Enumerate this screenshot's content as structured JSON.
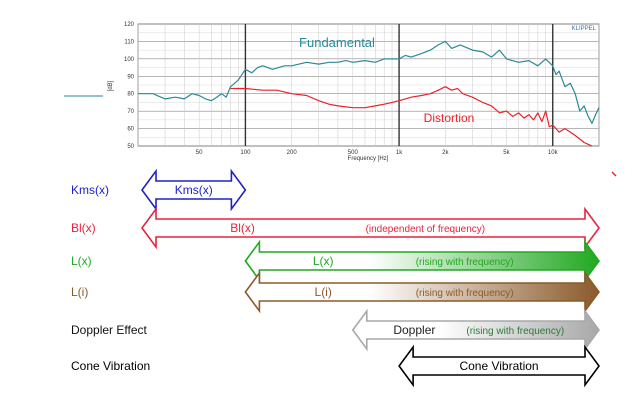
{
  "chart_data": {
    "type": "line",
    "x_scale": "log",
    "xlim": [
      20,
      20000
    ],
    "ylim": [
      50,
      120
    ],
    "grid": true,
    "xlabel": "Frequency [Hz]",
    "ylabel": "[dB]",
    "brand": "KLIPPEL",
    "x_ticks": [
      {
        "v": 50,
        "label": "50"
      },
      {
        "v": 100,
        "label": "100"
      },
      {
        "v": 200,
        "label": "200"
      },
      {
        "v": 500,
        "label": "500"
      },
      {
        "v": 1000,
        "label": "1k"
      },
      {
        "v": 2000,
        "label": "2k"
      },
      {
        "v": 5000,
        "label": "5k"
      },
      {
        "v": 10000,
        "label": "10k"
      }
    ],
    "y_ticks": [
      {
        "v": 50,
        "label": "50"
      },
      {
        "v": 60,
        "label": "60"
      },
      {
        "v": 70,
        "label": "70"
      },
      {
        "v": 80,
        "label": "80"
      },
      {
        "v": 90,
        "label": "90"
      },
      {
        "v": 100,
        "label": "100"
      },
      {
        "v": 110,
        "label": "110"
      },
      {
        "v": 120,
        "label": "120"
      }
    ],
    "series": [
      {
        "name": "Fundamental",
        "color": "#2a8a96",
        "points": [
          [
            20,
            80
          ],
          [
            25,
            80
          ],
          [
            30,
            77
          ],
          [
            35,
            78
          ],
          [
            40,
            77
          ],
          [
            45,
            80
          ],
          [
            50,
            79
          ],
          [
            55,
            77
          ],
          [
            60,
            76
          ],
          [
            65,
            78
          ],
          [
            70,
            80
          ],
          [
            75,
            78
          ],
          [
            80,
            84
          ],
          [
            85,
            86
          ],
          [
            90,
            88
          ],
          [
            100,
            94
          ],
          [
            110,
            92
          ],
          [
            120,
            95
          ],
          [
            130,
            96
          ],
          [
            150,
            94
          ],
          [
            180,
            96
          ],
          [
            200,
            96
          ],
          [
            250,
            98
          ],
          [
            300,
            97
          ],
          [
            350,
            98
          ],
          [
            400,
            98
          ],
          [
            450,
            99
          ],
          [
            500,
            98
          ],
          [
            600,
            99
          ],
          [
            700,
            98
          ],
          [
            800,
            100
          ],
          [
            900,
            100
          ],
          [
            1000,
            100
          ],
          [
            1100,
            102
          ],
          [
            1200,
            101
          ],
          [
            1400,
            103
          ],
          [
            1600,
            105
          ],
          [
            1800,
            108
          ],
          [
            2000,
            110
          ],
          [
            2200,
            106
          ],
          [
            2500,
            108
          ],
          [
            3000,
            105
          ],
          [
            3500,
            104
          ],
          [
            4000,
            101
          ],
          [
            4500,
            105
          ],
          [
            5000,
            100
          ],
          [
            6000,
            98
          ],
          [
            7000,
            99
          ],
          [
            8000,
            96
          ],
          [
            9000,
            100
          ],
          [
            10000,
            96
          ],
          [
            10500,
            91
          ],
          [
            11000,
            93
          ],
          [
            12000,
            84
          ],
          [
            13000,
            86
          ],
          [
            14000,
            80
          ],
          [
            15000,
            70
          ],
          [
            16000,
            73
          ],
          [
            17000,
            67
          ],
          [
            18000,
            63
          ],
          [
            19000,
            68
          ],
          [
            20000,
            72
          ]
        ]
      },
      {
        "name": "Distortion",
        "color": "#e8232a",
        "points": [
          [
            80,
            83
          ],
          [
            100,
            83
          ],
          [
            130,
            82
          ],
          [
            160,
            82
          ],
          [
            200,
            80
          ],
          [
            250,
            79
          ],
          [
            300,
            76
          ],
          [
            350,
            74
          ],
          [
            400,
            73
          ],
          [
            500,
            72
          ],
          [
            600,
            72
          ],
          [
            700,
            73
          ],
          [
            800,
            74
          ],
          [
            900,
            75
          ],
          [
            1000,
            76
          ],
          [
            1100,
            77
          ],
          [
            1200,
            78
          ],
          [
            1400,
            79
          ],
          [
            1600,
            80
          ],
          [
            1800,
            82
          ],
          [
            2000,
            84
          ],
          [
            2200,
            82
          ],
          [
            2400,
            83
          ],
          [
            2600,
            80
          ],
          [
            3000,
            78
          ],
          [
            3500,
            75
          ],
          [
            4000,
            73
          ],
          [
            4500,
            69
          ],
          [
            5000,
            70
          ],
          [
            5500,
            67
          ],
          [
            6000,
            69
          ],
          [
            6500,
            66
          ],
          [
            7000,
            68
          ],
          [
            7500,
            65
          ],
          [
            8000,
            69
          ],
          [
            8500,
            64
          ],
          [
            9000,
            70
          ],
          [
            9500,
            61
          ],
          [
            10000,
            62
          ],
          [
            10500,
            60
          ],
          [
            11000,
            58
          ],
          [
            12000,
            60
          ],
          [
            13000,
            58
          ],
          [
            14000,
            56
          ],
          [
            15000,
            54
          ],
          [
            16000,
            52
          ],
          [
            17000,
            51
          ],
          [
            18000,
            50
          ]
        ]
      }
    ]
  },
  "effects": [
    {
      "name": "Kms(x)",
      "row_label": "Kms(x)",
      "label": "Kms(x)",
      "note": "",
      "range": [
        20,
        100
      ],
      "color": "#1e22c8",
      "fill": "none",
      "style": "double"
    },
    {
      "name": "Bl(x)",
      "row_label": "Bl(x)",
      "label": "Bl(x)",
      "note": "(independent of frequency)",
      "range": [
        20,
        20000
      ],
      "color": "#e8233c",
      "fill": "none",
      "style": "double"
    },
    {
      "name": "L(x)",
      "row_label": "L(x)",
      "label": "L(x)",
      "note": "(rising with frequency)",
      "range": [
        100,
        20000
      ],
      "color": "#22a822",
      "fill": "gradient",
      "style": "double"
    },
    {
      "name": "L(i)",
      "row_label": "L(i)",
      "label": "L(i)",
      "note": "(rising with frequency)",
      "range": [
        100,
        20000
      ],
      "color": "#8a5a2a",
      "fill": "gradient",
      "style": "double"
    },
    {
      "name": "Doppler",
      "row_label": "Doppler Effect",
      "label": "Doppler",
      "note": "(rising with frequency)",
      "range": [
        500,
        20000
      ],
      "color": "#a8a8a8",
      "fill": "gradient",
      "style": "double"
    },
    {
      "name": "Cone Vibration",
      "row_label": "Cone Vibration",
      "label": "Cone Vibration",
      "note": "",
      "range": [
        1000,
        20000
      ],
      "color": "#000000",
      "fill": "none",
      "style": "double"
    }
  ]
}
